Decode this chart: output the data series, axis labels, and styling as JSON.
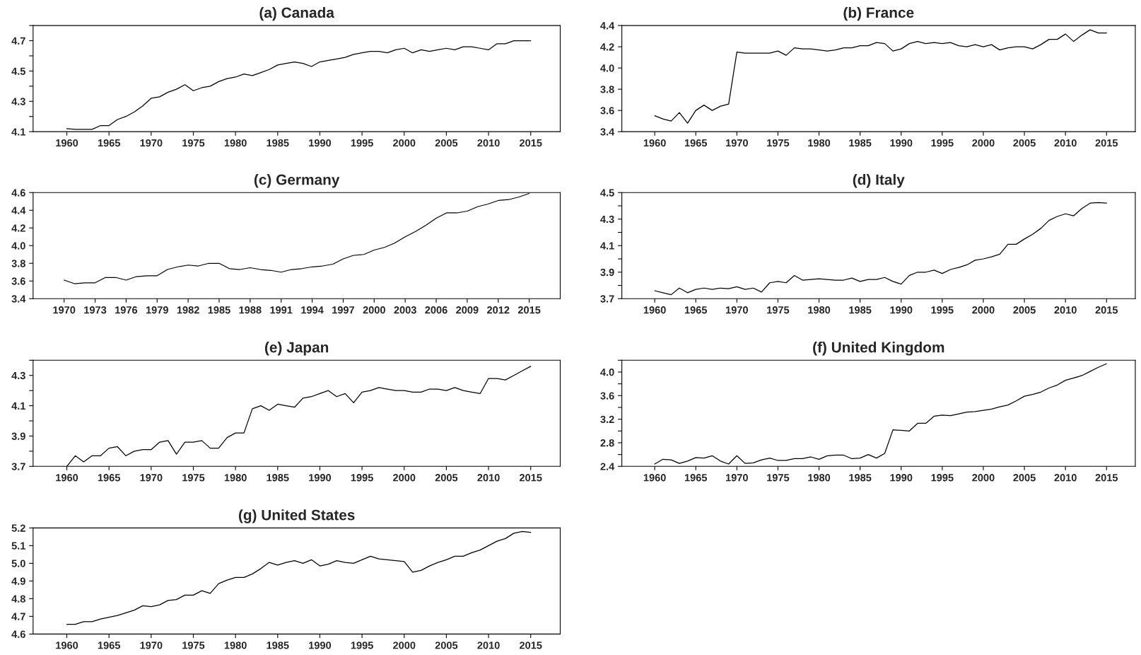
{
  "chart_data": [
    {
      "type": "line",
      "title": "(a) Canada",
      "x": [
        1960,
        1961,
        1962,
        1963,
        1964,
        1965,
        1966,
        1967,
        1968,
        1969,
        1970,
        1971,
        1972,
        1973,
        1974,
        1975,
        1976,
        1977,
        1978,
        1979,
        1980,
        1981,
        1982,
        1983,
        1984,
        1985,
        1986,
        1987,
        1988,
        1989,
        1990,
        1991,
        1992,
        1993,
        1994,
        1995,
        1996,
        1997,
        1998,
        1999,
        2000,
        2001,
        2002,
        2003,
        2004,
        2005,
        2006,
        2007,
        2008,
        2009,
        2010,
        2011,
        2012,
        2013,
        2014,
        2015
      ],
      "series": [
        {
          "color": "#000000",
          "values": [
            4.12,
            4.115,
            4.115,
            4.115,
            4.14,
            4.14,
            4.18,
            4.2,
            4.23,
            4.27,
            4.32,
            4.33,
            4.36,
            4.38,
            4.41,
            4.37,
            4.39,
            4.4,
            4.43,
            4.45,
            4.46,
            4.48,
            4.47,
            4.49,
            4.51,
            4.54,
            4.55,
            4.56,
            4.55,
            4.53,
            4.56,
            4.57,
            4.58,
            4.59,
            4.61,
            4.62,
            4.63,
            4.63,
            4.62,
            4.64,
            4.65,
            4.62,
            4.64,
            4.63,
            4.64,
            4.65,
            4.64,
            4.66,
            4.66,
            4.65,
            4.64,
            4.68,
            4.68,
            4.7,
            4.7,
            4.7
          ]
        }
      ],
      "xlim": [
        1956,
        2018.5
      ],
      "xticks": [
        1960,
        1965,
        1970,
        1975,
        1980,
        1985,
        1990,
        1995,
        2000,
        2005,
        2010,
        2015
      ],
      "ylim": [
        4.1,
        4.8
      ],
      "yticks": [
        4.1,
        {
          "value": 4.2,
          "label": null
        },
        4.3,
        {
          "value": 4.4,
          "label": null
        },
        4.5,
        {
          "value": 4.6,
          "label": null
        },
        4.7,
        {
          "value": 4.8,
          "label": null
        }
      ]
    },
    {
      "type": "line",
      "title": "(b) France",
      "x": [
        1960,
        1961,
        1962,
        1963,
        1964,
        1965,
        1966,
        1967,
        1968,
        1969,
        1970,
        1971,
        1972,
        1973,
        1974,
        1975,
        1976,
        1977,
        1978,
        1979,
        1980,
        1981,
        1982,
        1983,
        1984,
        1985,
        1986,
        1987,
        1988,
        1989,
        1990,
        1991,
        1992,
        1993,
        1994,
        1995,
        1996,
        1997,
        1998,
        1999,
        2000,
        2001,
        2002,
        2003,
        2004,
        2005,
        2006,
        2007,
        2008,
        2009,
        2010,
        2011,
        2012,
        2013,
        2014,
        2015
      ],
      "series": [
        {
          "color": "#000000",
          "values": [
            3.55,
            3.52,
            3.5,
            3.58,
            3.48,
            3.6,
            3.65,
            3.6,
            3.64,
            3.66,
            4.15,
            4.14,
            4.14,
            4.14,
            4.14,
            4.16,
            4.12,
            4.19,
            4.18,
            4.18,
            4.17,
            4.16,
            4.17,
            4.19,
            4.19,
            4.21,
            4.21,
            4.24,
            4.23,
            4.16,
            4.18,
            4.23,
            4.25,
            4.23,
            4.24,
            4.23,
            4.24,
            4.21,
            4.2,
            4.22,
            4.2,
            4.22,
            4.17,
            4.19,
            4.2,
            4.2,
            4.18,
            4.22,
            4.27,
            4.27,
            4.32,
            4.25,
            4.31,
            4.36,
            4.33,
            4.33
          ]
        }
      ],
      "xlim": [
        1956,
        2018.5
      ],
      "xticks": [
        1960,
        1965,
        1970,
        1975,
        1980,
        1985,
        1990,
        1995,
        2000,
        2005,
        2010,
        2015
      ],
      "ylim": [
        3.4,
        4.4
      ],
      "yticks": [
        3.4,
        3.6,
        3.8,
        {
          "value": 4,
          "label": "4.0"
        },
        4.2,
        4.4
      ]
    },
    {
      "type": "line",
      "title": "(c) Germany",
      "x": [
        1970,
        1971,
        1972,
        1973,
        1974,
        1975,
        1976,
        1977,
        1978,
        1979,
        1980,
        1981,
        1982,
        1983,
        1984,
        1985,
        1986,
        1987,
        1988,
        1989,
        1990,
        1991,
        1992,
        1993,
        1994,
        1995,
        1996,
        1997,
        1998,
        1999,
        2000,
        2001,
        2002,
        2003,
        2004,
        2005,
        2006,
        2007,
        2008,
        2009,
        2010,
        2011,
        2012,
        2013,
        2014,
        2015
      ],
      "series": [
        {
          "color": "#000000",
          "values": [
            3.61,
            3.57,
            3.58,
            3.58,
            3.64,
            3.64,
            3.61,
            3.65,
            3.66,
            3.66,
            3.73,
            3.76,
            3.78,
            3.77,
            3.8,
            3.8,
            3.74,
            3.73,
            3.75,
            3.73,
            3.72,
            3.7,
            3.73,
            3.74,
            3.76,
            3.77,
            3.79,
            3.85,
            3.89,
            3.9,
            3.95,
            3.98,
            4.03,
            4.1,
            4.16,
            4.23,
            4.31,
            4.37,
            4.37,
            4.39,
            4.44,
            4.47,
            4.51,
            4.52,
            4.55,
            4.59
          ]
        }
      ],
      "xlim": [
        1967,
        2018
      ],
      "xticks": [
        1970,
        1973,
        1976,
        1979,
        1982,
        1985,
        1988,
        1991,
        1994,
        1997,
        2000,
        2003,
        2006,
        2009,
        2012,
        2015
      ],
      "ylim": [
        3.4,
        4.6
      ],
      "yticks": [
        3.4,
        3.6,
        3.8,
        {
          "value": 4,
          "label": "4.0"
        },
        4.2,
        4.4,
        4.6
      ]
    },
    {
      "type": "line",
      "title": "(d) Italy",
      "x": [
        1960,
        1961,
        1962,
        1963,
        1964,
        1965,
        1966,
        1967,
        1968,
        1969,
        1970,
        1971,
        1972,
        1973,
        1974,
        1975,
        1976,
        1977,
        1978,
        1979,
        1980,
        1981,
        1982,
        1983,
        1984,
        1985,
        1986,
        1987,
        1988,
        1989,
        1990,
        1991,
        1992,
        1993,
        1994,
        1995,
        1996,
        1997,
        1998,
        1999,
        2000,
        2001,
        2002,
        2003,
        2004,
        2005,
        2006,
        2007,
        2008,
        2009,
        2010,
        2011,
        2012,
        2013,
        2014,
        2015
      ],
      "series": [
        {
          "color": "#000000",
          "values": [
            3.76,
            3.745,
            3.73,
            3.78,
            3.745,
            3.77,
            3.78,
            3.77,
            3.78,
            3.775,
            3.79,
            3.77,
            3.78,
            3.75,
            3.82,
            3.83,
            3.82,
            3.875,
            3.84,
            3.845,
            3.85,
            3.845,
            3.84,
            3.84,
            3.855,
            3.83,
            3.845,
            3.845,
            3.86,
            3.83,
            3.81,
            3.875,
            3.9,
            3.9,
            3.915,
            3.89,
            3.92,
            3.935,
            3.955,
            3.99,
            4.0,
            4.015,
            4.035,
            4.11,
            4.11,
            4.15,
            4.185,
            4.23,
            4.29,
            4.32,
            4.34,
            4.325,
            4.38,
            4.42,
            4.425,
            4.42
          ]
        }
      ],
      "xlim": [
        1956,
        2018.5
      ],
      "xticks": [
        1960,
        1965,
        1970,
        1975,
        1980,
        1985,
        1990,
        1995,
        2000,
        2005,
        2010,
        2015
      ],
      "ylim": [
        3.7,
        4.5
      ],
      "yticks": [
        3.7,
        {
          "value": 3.8,
          "label": null
        },
        3.9,
        {
          "value": 4.0,
          "label": null
        },
        4.1,
        {
          "value": 4.2,
          "label": null
        },
        4.3,
        {
          "value": 4.4,
          "label": null
        },
        4.5
      ]
    },
    {
      "type": "line",
      "title": "(e) Japan",
      "x": [
        1960,
        1961,
        1962,
        1963,
        1964,
        1965,
        1966,
        1967,
        1968,
        1969,
        1970,
        1971,
        1972,
        1973,
        1974,
        1975,
        1976,
        1977,
        1978,
        1979,
        1980,
        1981,
        1982,
        1983,
        1984,
        1985,
        1986,
        1987,
        1988,
        1989,
        1990,
        1991,
        1992,
        1993,
        1994,
        1995,
        1996,
        1997,
        1998,
        1999,
        2000,
        2001,
        2002,
        2003,
        2004,
        2005,
        2006,
        2007,
        2008,
        2009,
        2010,
        2011,
        2012,
        2013,
        2014,
        2015
      ],
      "series": [
        {
          "color": "#000000",
          "values": [
            3.7,
            3.77,
            3.73,
            3.77,
            3.77,
            3.82,
            3.83,
            3.77,
            3.8,
            3.81,
            3.81,
            3.86,
            3.87,
            3.78,
            3.86,
            3.86,
            3.87,
            3.82,
            3.82,
            3.89,
            3.92,
            3.92,
            4.08,
            4.1,
            4.07,
            4.11,
            4.1,
            4.09,
            4.15,
            4.16,
            4.18,
            4.2,
            4.16,
            4.18,
            4.12,
            4.19,
            4.2,
            4.22,
            4.21,
            4.2,
            4.2,
            4.19,
            4.19,
            4.21,
            4.21,
            4.2,
            4.22,
            4.2,
            4.19,
            4.18,
            4.28,
            4.28,
            4.27,
            4.3,
            4.33,
            4.36
          ]
        }
      ],
      "xlim": [
        1956,
        2018.5
      ],
      "xticks": [
        1960,
        1965,
        1970,
        1975,
        1980,
        1985,
        1990,
        1995,
        2000,
        2005,
        2010,
        2015
      ],
      "ylim": [
        3.7,
        4.4
      ],
      "yticks": [
        3.7,
        {
          "value": 3.8,
          "label": null
        },
        3.9,
        {
          "value": 4.0,
          "label": null
        },
        4.1,
        {
          "value": 4.2,
          "label": null
        },
        4.3,
        {
          "value": 4.4,
          "label": null
        }
      ]
    },
    {
      "type": "line",
      "title": "(f) United Kingdom",
      "x": [
        1960,
        1961,
        1962,
        1963,
        1964,
        1965,
        1966,
        1967,
        1968,
        1969,
        1970,
        1971,
        1972,
        1973,
        1974,
        1975,
        1976,
        1977,
        1978,
        1979,
        1980,
        1981,
        1982,
        1983,
        1984,
        1985,
        1986,
        1987,
        1988,
        1989,
        1990,
        1991,
        1992,
        1993,
        1994,
        1995,
        1996,
        1997,
        1998,
        1999,
        2000,
        2001,
        2002,
        2003,
        2004,
        2005,
        2006,
        2007,
        2008,
        2009,
        2010,
        2011,
        2012,
        2013,
        2014,
        2015
      ],
      "series": [
        {
          "color": "#000000",
          "values": [
            2.44,
            2.52,
            2.51,
            2.45,
            2.49,
            2.55,
            2.54,
            2.58,
            2.49,
            2.44,
            2.58,
            2.45,
            2.46,
            2.51,
            2.54,
            2.5,
            2.5,
            2.53,
            2.53,
            2.56,
            2.52,
            2.58,
            2.59,
            2.59,
            2.53,
            2.54,
            2.6,
            2.54,
            2.62,
            3.02,
            3.01,
            3.0,
            3.13,
            3.13,
            3.25,
            3.27,
            3.26,
            3.29,
            3.32,
            3.33,
            3.35,
            3.37,
            3.41,
            3.44,
            3.51,
            3.59,
            3.62,
            3.66,
            3.73,
            3.78,
            3.86,
            3.9,
            3.94,
            4.01,
            4.08,
            4.14
          ]
        }
      ],
      "xlim": [
        1956,
        2018.5
      ],
      "xticks": [
        1960,
        1965,
        1970,
        1975,
        1980,
        1985,
        1990,
        1995,
        2000,
        2005,
        2010,
        2015
      ],
      "ylim": [
        2.4,
        4.2
      ],
      "yticks": [
        2.4,
        {
          "value": 2.6,
          "label": null
        },
        2.8,
        {
          "value": 3.0,
          "label": null
        },
        3.2,
        {
          "value": 3.4,
          "label": null
        },
        3.6,
        {
          "value": 3.8,
          "label": null
        },
        {
          "value": 4,
          "label": "4.0"
        },
        {
          "value": 4.2,
          "label": null
        }
      ]
    },
    {
      "type": "line",
      "title": "(g) United States",
      "x": [
        1960,
        1961,
        1962,
        1963,
        1964,
        1965,
        1966,
        1967,
        1968,
        1969,
        1970,
        1971,
        1972,
        1973,
        1974,
        1975,
        1976,
        1977,
        1978,
        1979,
        1980,
        1981,
        1982,
        1983,
        1984,
        1985,
        1986,
        1987,
        1988,
        1989,
        1990,
        1991,
        1992,
        1993,
        1994,
        1995,
        1996,
        1997,
        1998,
        1999,
        2000,
        2001,
        2002,
        2003,
        2004,
        2005,
        2006,
        2007,
        2008,
        2009,
        2010,
        2011,
        2012,
        2013,
        2014,
        2015
      ],
      "series": [
        {
          "color": "#000000",
          "values": [
            4.655,
            4.655,
            4.67,
            4.67,
            4.685,
            4.695,
            4.705,
            4.72,
            4.735,
            4.76,
            4.755,
            4.765,
            4.79,
            4.795,
            4.82,
            4.82,
            4.845,
            4.83,
            4.885,
            4.905,
            4.92,
            4.92,
            4.94,
            4.97,
            5.005,
            4.99,
            5.005,
            5.015,
            5.0,
            5.02,
            4.985,
            4.995,
            5.015,
            5.005,
            5.0,
            5.02,
            5.04,
            5.025,
            5.02,
            5.015,
            5.01,
            4.95,
            4.96,
            4.985,
            5.005,
            5.02,
            5.04,
            5.04,
            5.06,
            5.075,
            5.1,
            5.125,
            5.14,
            5.17,
            5.18,
            5.175
          ]
        }
      ],
      "xlim": [
        1956,
        2018.5
      ],
      "xticks": [
        1960,
        1965,
        1970,
        1975,
        1980,
        1985,
        1990,
        1995,
        2000,
        2005,
        2010,
        2015
      ],
      "ylim": [
        4.6,
        5.2
      ],
      "yticks": [
        4.6,
        4.7,
        4.8,
        4.9,
        {
          "value": 5,
          "label": "5.0"
        },
        5.1,
        5.2
      ]
    }
  ]
}
